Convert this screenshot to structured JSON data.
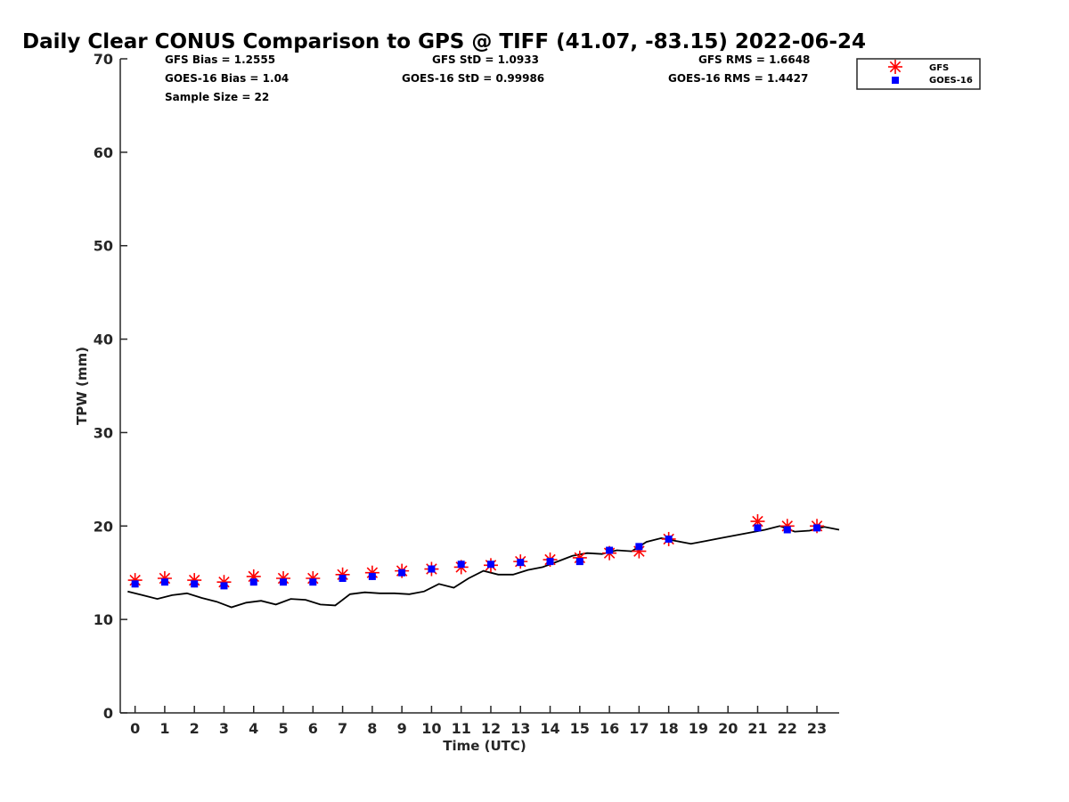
{
  "chart_data": {
    "type": "scatter",
    "title": "Daily Clear CONUS Comparison to GPS @ TIFF (41.07, -83.15) 2022-06-24",
    "xlabel": "Time (UTC)",
    "ylabel": "TPW (mm)",
    "xlim": [
      -0.5,
      23.75
    ],
    "ylim": [
      0,
      70
    ],
    "xticks": [
      0,
      1,
      2,
      3,
      4,
      5,
      6,
      7,
      8,
      9,
      10,
      11,
      12,
      13,
      14,
      15,
      16,
      17,
      18,
      19,
      20,
      21,
      22,
      23
    ],
    "yticks": [
      0,
      10,
      20,
      30,
      40,
      50,
      60,
      70
    ],
    "grid": false,
    "legend_position": "top-right",
    "stats": {
      "gfs_bias": "GFS Bias = 1.2555",
      "goes_bias": "GOES-16 Bias = 1.04",
      "sample_size": "Sample Size = 22",
      "gfs_std": "GFS StD = 1.0933",
      "goes_std": "GOES-16 StD = 0.99986",
      "gfs_rms": "GFS RMS = 1.6648",
      "goes_rms": "GOES-16 RMS = 1.4427"
    },
    "series": [
      {
        "name": "GFS",
        "marker": "asterisk",
        "color": "#ff0000",
        "x": [
          0,
          1,
          2,
          3,
          4,
          5,
          6,
          7,
          8,
          9,
          10,
          11,
          12,
          13,
          14,
          15,
          16,
          17,
          18,
          21,
          22,
          23
        ],
        "y": [
          14.2,
          14.4,
          14.2,
          14.0,
          14.6,
          14.4,
          14.4,
          14.8,
          15.0,
          15.2,
          15.4,
          15.6,
          15.8,
          16.2,
          16.4,
          16.6,
          17.1,
          17.3,
          18.6,
          20.5,
          20.0,
          20.0
        ]
      },
      {
        "name": "GOES-16",
        "marker": "square",
        "color": "#0000ff",
        "x": [
          0,
          1,
          2,
          3,
          4,
          5,
          6,
          7,
          8,
          9,
          10,
          11,
          12,
          13,
          14,
          15,
          16,
          17,
          18,
          21,
          22,
          23
        ],
        "y": [
          13.8,
          14.0,
          13.8,
          13.6,
          14.0,
          14.0,
          14.0,
          14.4,
          14.6,
          15.0,
          15.4,
          15.9,
          15.9,
          16.1,
          16.2,
          16.2,
          17.4,
          17.8,
          18.6,
          19.8,
          19.6,
          19.8
        ]
      },
      {
        "name": "GPS",
        "marker": "line",
        "color": "#000000",
        "x": [
          -0.25,
          0.25,
          0.75,
          1.25,
          1.75,
          2.25,
          2.75,
          3.25,
          3.75,
          4.25,
          4.75,
          5.25,
          5.75,
          6.25,
          6.75,
          7.25,
          7.75,
          8.25,
          8.75,
          9.25,
          9.75,
          10.25,
          10.75,
          11.25,
          11.75,
          12.25,
          12.75,
          13.25,
          13.75,
          14.25,
          14.75,
          15.25,
          15.75,
          16.25,
          16.75,
          17.25,
          17.75,
          18.25,
          18.75,
          19.25,
          19.75,
          20.25,
          20.75,
          21.25,
          21.75,
          22.25,
          22.75,
          23.25,
          23.75
        ],
        "y": [
          13.0,
          12.6,
          12.2,
          12.6,
          12.8,
          12.3,
          11.9,
          11.3,
          11.8,
          12.0,
          11.6,
          12.2,
          12.1,
          11.6,
          11.5,
          12.7,
          12.9,
          12.8,
          12.8,
          12.7,
          13.0,
          13.8,
          13.4,
          14.4,
          15.2,
          14.8,
          14.8,
          15.3,
          15.6,
          16.2,
          16.8,
          17.1,
          17.0,
          17.4,
          17.3,
          18.3,
          18.7,
          18.4,
          18.1,
          18.4,
          18.7,
          19.0,
          19.3,
          19.6,
          20.0,
          19.4,
          19.5,
          19.9,
          19.6
        ]
      }
    ]
  }
}
